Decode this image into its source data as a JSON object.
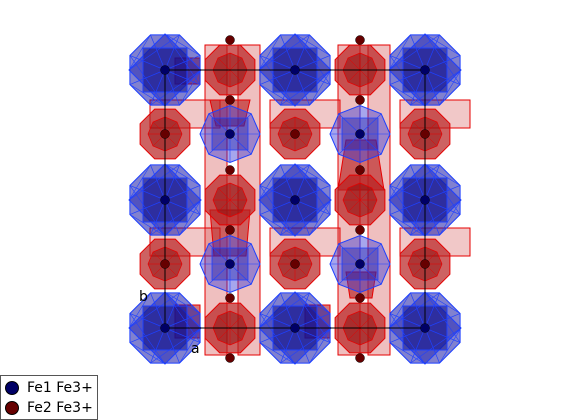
{
  "structure": {
    "colors": {
      "fe1": "#1a1aa8",
      "fe1_edge": "#1e40ff",
      "fe1_atom": "#000066",
      "fe2": "#b82020",
      "fe2_edge": "#e60000",
      "fe2_atom": "#660000",
      "cell_line": "#000000"
    }
  },
  "axes": {
    "b_label": "b",
    "a_label": "a"
  },
  "legend": {
    "items": [
      {
        "label": "Fe1 Fe3+",
        "color": "#000066"
      },
      {
        "label": "Fe2 Fe3+",
        "color": "#660000"
      }
    ]
  }
}
